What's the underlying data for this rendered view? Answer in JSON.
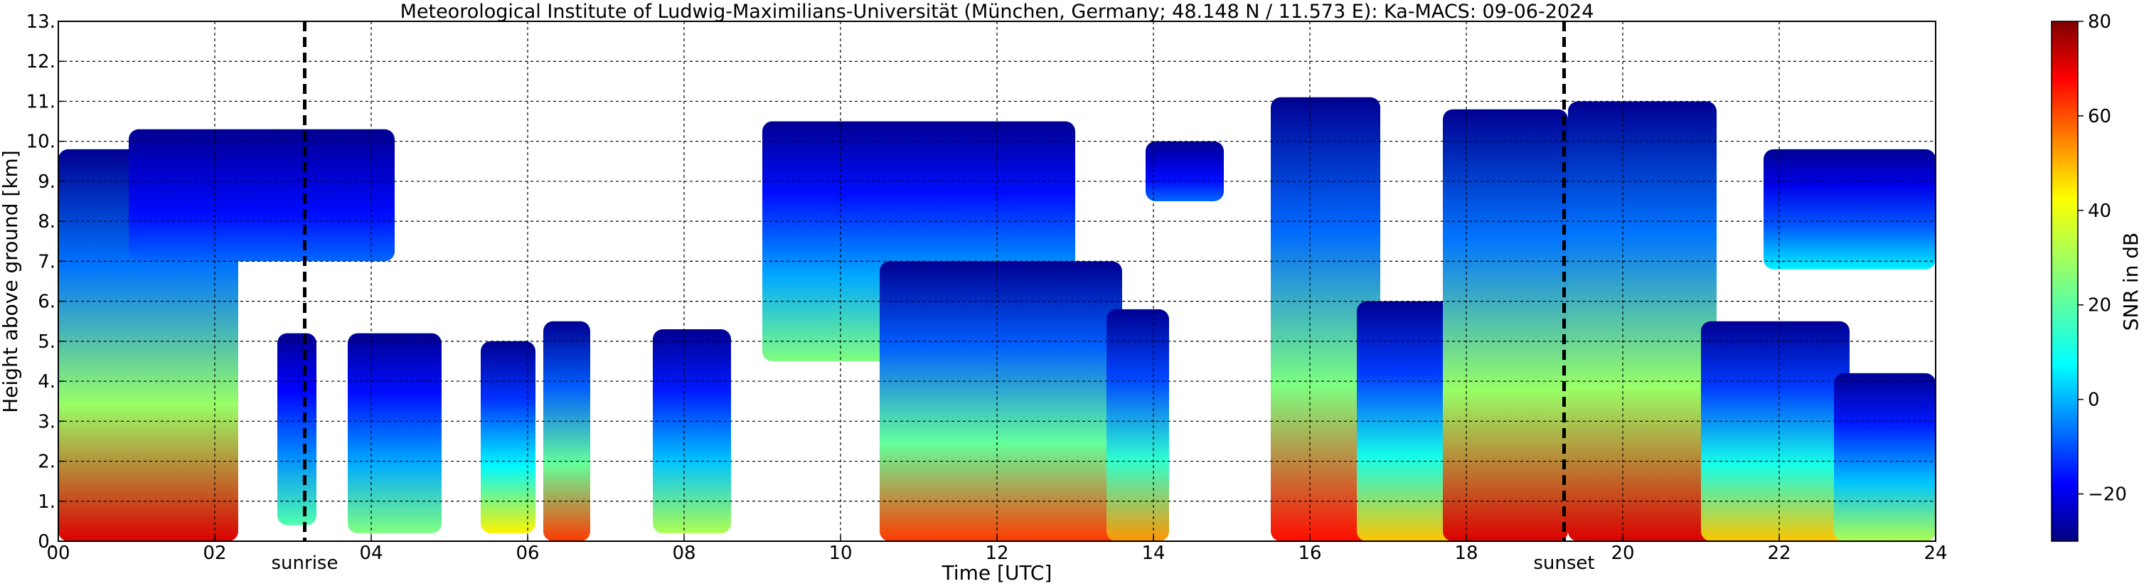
{
  "chart_data": {
    "type": "heatmap",
    "title": "Meteorological Institute of Ludwig-Maximilians-Universität (München, Germany; 48.148 N / 11.573 E):    Ka-MACS: 09-06-2024",
    "xlabel": "Time [UTC]",
    "ylabel": "Height above ground [km]",
    "xlim": [
      0,
      24
    ],
    "ylim": [
      0,
      13
    ],
    "x_ticks": [
      {
        "value": 0,
        "label": "00"
      },
      {
        "value": 2,
        "label": "02"
      },
      {
        "value": 4,
        "label": "04"
      },
      {
        "value": 6,
        "label": "06"
      },
      {
        "value": 8,
        "label": "08"
      },
      {
        "value": 10,
        "label": "10"
      },
      {
        "value": 12,
        "label": "12"
      },
      {
        "value": 14,
        "label": "14"
      },
      {
        "value": 16,
        "label": "16"
      },
      {
        "value": 18,
        "label": "18"
      },
      {
        "value": 20,
        "label": "20"
      },
      {
        "value": 22,
        "label": "22"
      },
      {
        "value": 24,
        "label": "24"
      }
    ],
    "y_ticks": [
      {
        "value": 0,
        "label": "0."
      },
      {
        "value": 1,
        "label": "1."
      },
      {
        "value": 2,
        "label": "2."
      },
      {
        "value": 3,
        "label": "3."
      },
      {
        "value": 4,
        "label": "4."
      },
      {
        "value": 5,
        "label": "5."
      },
      {
        "value": 6,
        "label": "6."
      },
      {
        "value": 7,
        "label": "7."
      },
      {
        "value": 8,
        "label": "8."
      },
      {
        "value": 9,
        "label": "9."
      },
      {
        "value": 10,
        "label": "10."
      },
      {
        "value": 11,
        "label": "11."
      },
      {
        "value": 12,
        "label": "12."
      },
      {
        "value": 13,
        "label": "13."
      }
    ],
    "grid": true,
    "grid_style": "dashed",
    "markers": [
      {
        "name": "sunrise",
        "label": "sunrise",
        "time": 3.15
      },
      {
        "name": "sunset",
        "label": "sunset",
        "time": 19.25
      }
    ],
    "colorbar": {
      "label": "SNR in dB",
      "range": [
        -30,
        80
      ],
      "ticks": [
        {
          "value": -20,
          "label": "−20"
        },
        {
          "value": 0,
          "label": "0"
        },
        {
          "value": 20,
          "label": "20"
        },
        {
          "value": 40,
          "label": "40"
        },
        {
          "value": 60,
          "label": "60"
        },
        {
          "value": 80,
          "label": "80"
        }
      ],
      "colormap": "jet"
    },
    "cloud_regions": [
      {
        "t0": 0.0,
        "t1": 2.3,
        "top": 9.8,
        "base": 0.0,
        "peak_snr": 70
      },
      {
        "t0": 0.9,
        "t1": 4.3,
        "top": 10.3,
        "base": 7.0,
        "peak_snr": -5
      },
      {
        "t0": 2.8,
        "t1": 3.3,
        "top": 5.2,
        "base": 0.4,
        "peak_snr": 20
      },
      {
        "t0": 3.7,
        "t1": 4.9,
        "top": 5.2,
        "base": 0.2,
        "peak_snr": 25
      },
      {
        "t0": 5.4,
        "t1": 6.1,
        "top": 5.0,
        "base": 0.2,
        "peak_snr": 40
      },
      {
        "t0": 6.2,
        "t1": 6.8,
        "top": 5.5,
        "base": 0.0,
        "peak_snr": 60
      },
      {
        "t0": 7.6,
        "t1": 8.6,
        "top": 5.3,
        "base": 0.2,
        "peak_snr": 30
      },
      {
        "t0": 9.0,
        "t1": 13.0,
        "top": 10.5,
        "base": 4.5,
        "peak_snr": 25
      },
      {
        "t0": 10.5,
        "t1": 13.6,
        "top": 7.0,
        "base": 0.0,
        "peak_snr": 60
      },
      {
        "t0": 13.4,
        "t1": 14.2,
        "top": 5.8,
        "base": 0.0,
        "peak_snr": 50
      },
      {
        "t0": 13.9,
        "t1": 14.9,
        "top": 10.0,
        "base": 8.5,
        "peak_snr": -5
      },
      {
        "t0": 15.5,
        "t1": 16.9,
        "top": 11.1,
        "base": 0.0,
        "peak_snr": 65
      },
      {
        "t0": 16.6,
        "t1": 17.9,
        "top": 6.0,
        "base": 0.0,
        "peak_snr": 45
      },
      {
        "t0": 17.7,
        "t1": 19.3,
        "top": 10.8,
        "base": 0.0,
        "peak_snr": 70
      },
      {
        "t0": 19.3,
        "t1": 21.2,
        "top": 11.0,
        "base": 0.0,
        "peak_snr": 70
      },
      {
        "t0": 21.0,
        "t1": 22.9,
        "top": 5.5,
        "base": 0.0,
        "peak_snr": 45
      },
      {
        "t0": 21.8,
        "t1": 24.0,
        "top": 9.8,
        "base": 6.8,
        "peak_snr": 10
      },
      {
        "t0": 22.7,
        "t1": 24.0,
        "top": 4.2,
        "base": 0.0,
        "peak_snr": 30
      }
    ]
  }
}
